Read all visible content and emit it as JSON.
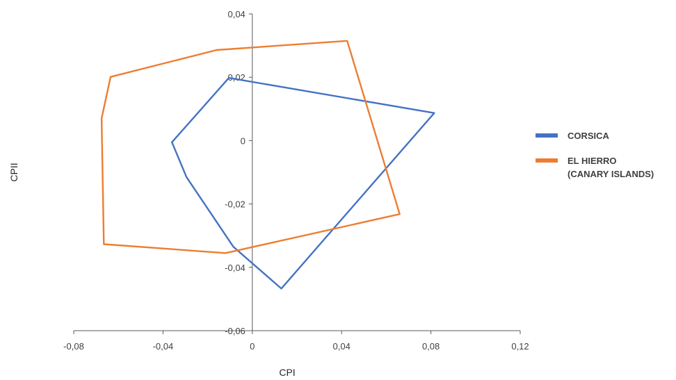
{
  "chart_data": {
    "type": "line",
    "title": "",
    "xlabel": "CPI",
    "ylabel": "CPII",
    "xlim": [
      -0.08,
      0.12
    ],
    "ylim": [
      -0.06,
      0.04
    ],
    "xticks": [
      -0.08,
      -0.04,
      0,
      0.04,
      0.08,
      0.12
    ],
    "yticks": [
      -0.06,
      -0.04,
      -0.02,
      0,
      0.02,
      0.04
    ],
    "xtick_labels": [
      "-0,08",
      "-0,04",
      "0",
      "0,04",
      "0,08",
      "0,12"
    ],
    "ytick_labels": [
      "-0,06",
      "-0,04",
      "-0,02",
      "0",
      "0,02",
      "0,04"
    ],
    "grid": false,
    "legend_position": "right",
    "series": [
      {
        "name": "CORSICA",
        "color": "#4472C4",
        "points": [
          [
            -0.036,
            -0.0005
          ],
          [
            -0.0105,
            0.0198
          ],
          [
            0.0815,
            0.0087
          ],
          [
            0.013,
            -0.0467
          ],
          [
            -0.0085,
            -0.0335
          ],
          [
            -0.0295,
            -0.0115
          ],
          [
            -0.036,
            -0.0005
          ]
        ]
      },
      {
        "name": "EL HIERRO\n(CANARY ISLANDS)",
        "color": "#ED7D31",
        "points": [
          [
            -0.0665,
            -0.0327
          ],
          [
            -0.0675,
            0.007
          ],
          [
            -0.0635,
            0.0201
          ],
          [
            -0.016,
            0.0286
          ],
          [
            0.0425,
            0.0315
          ],
          [
            0.066,
            -0.0232
          ],
          [
            -0.012,
            -0.0355
          ],
          [
            -0.0665,
            -0.0327
          ]
        ]
      }
    ]
  }
}
